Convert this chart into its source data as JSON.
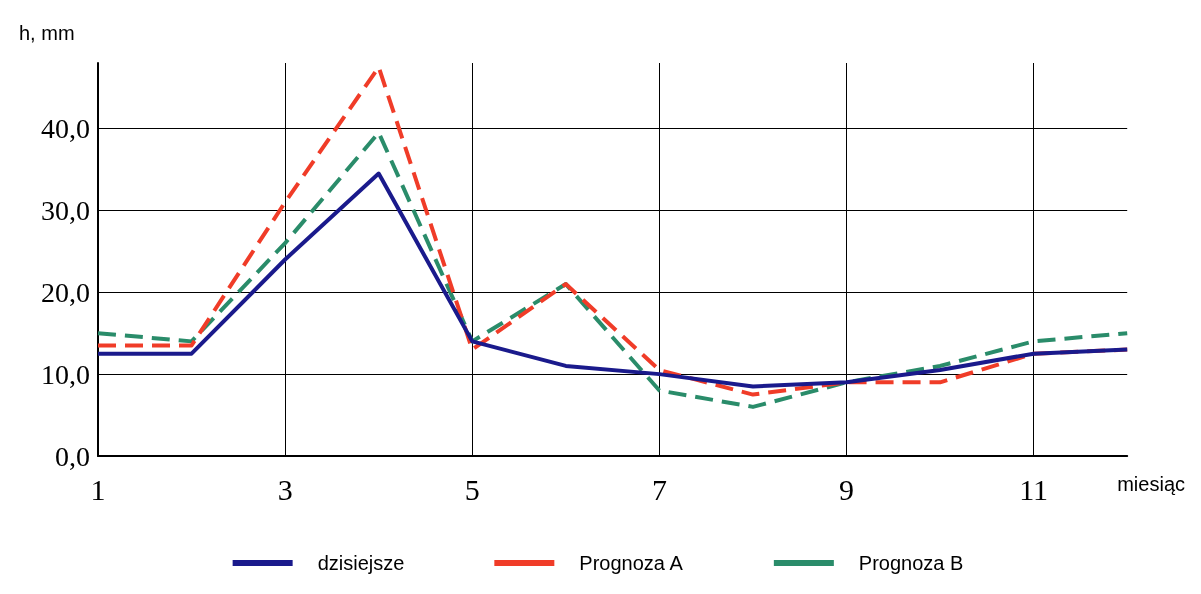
{
  "chart_data": {
    "type": "line",
    "ylabel": "h, mm",
    "xlabel": "miesiąc",
    "x": [
      1,
      2,
      3,
      4,
      5,
      6,
      7,
      8,
      9,
      10,
      11,
      12
    ],
    "xlim": [
      1,
      12
    ],
    "xticks": [
      1,
      3,
      5,
      7,
      9,
      11
    ],
    "ylim": [
      0,
      48
    ],
    "yticks": [
      {
        "value": 0,
        "label": "0,0"
      },
      {
        "value": 10,
        "label": "10,0"
      },
      {
        "value": 20,
        "label": "20,0"
      },
      {
        "value": 30,
        "label": "30,0"
      },
      {
        "value": 40,
        "label": "40,0"
      }
    ],
    "grid": true,
    "legend": "bottom",
    "marker": "none",
    "series": [
      {
        "name": "dzisiejsze",
        "color": "#1a1a8c",
        "line_style": "solid",
        "values": [
          12.5,
          12.5,
          24,
          34.5,
          14,
          11,
          10,
          8.5,
          9,
          10.5,
          12.5,
          13
        ]
      },
      {
        "name": "Prognoza A",
        "color": "#f03c28",
        "line_style": "dashed",
        "values": [
          13.5,
          13.5,
          31,
          47.5,
          13,
          21,
          10.5,
          7.5,
          9,
          9,
          12.5,
          13
        ]
      },
      {
        "name": "Prognoza B",
        "color": "#2a8c6a",
        "line_style": "dashed",
        "values": [
          15,
          14,
          26,
          39.5,
          14,
          21,
          8,
          6,
          9,
          11,
          14,
          15
        ]
      }
    ]
  }
}
